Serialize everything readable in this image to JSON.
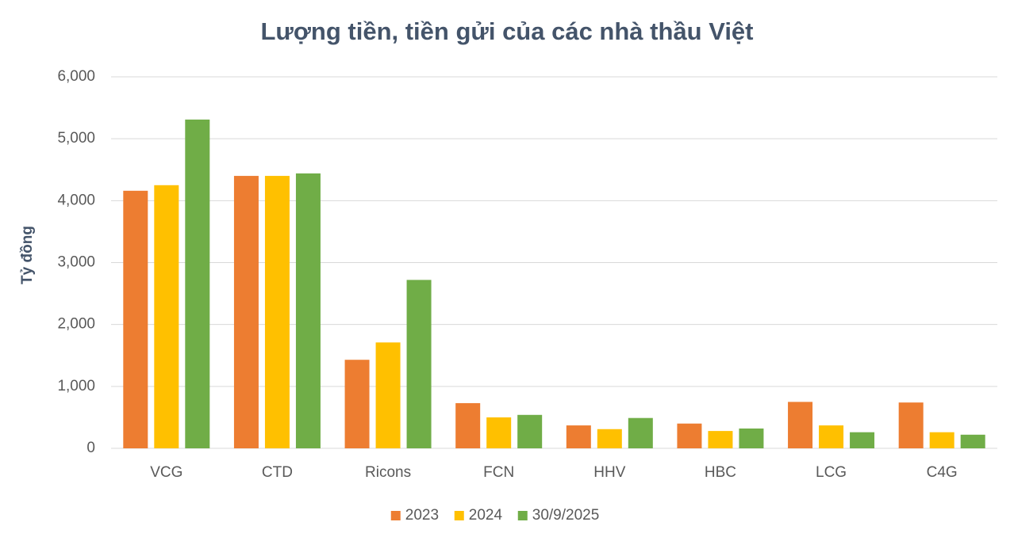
{
  "chart_data": {
    "type": "bar",
    "title": "Lượng tiền, tiền gửi của các nhà thầu Việt",
    "y_label": "Tỷ đồng",
    "categories": [
      "VCG",
      "CTD",
      "Ricons",
      "FCN",
      "HHV",
      "HBC",
      "LCG",
      "C4G"
    ],
    "series": [
      {
        "name": "2023",
        "color": "#ed7d31",
        "values": [
          4160,
          4400,
          1430,
          730,
          370,
          400,
          750,
          740
        ]
      },
      {
        "name": "2024",
        "color": "#ffc000",
        "values": [
          4250,
          4400,
          1710,
          500,
          310,
          280,
          370,
          260
        ]
      },
      {
        "name": "30/9/2025",
        "color": "#70ad47",
        "values": [
          5310,
          4440,
          2720,
          540,
          490,
          320,
          260,
          220
        ]
      }
    ],
    "ylim": [
      0,
      6000
    ],
    "yticks": [
      0,
      {
        "value": 1000,
        "label": "1,000"
      },
      {
        "value": 2000,
        "label": "2,000"
      },
      {
        "value": 3000,
        "label": "3,000"
      },
      {
        "value": 4000,
        "label": "4,000"
      },
      {
        "value": 5000,
        "label": "5,000"
      },
      {
        "value": 6000,
        "label": "6,000"
      }
    ],
    "grid": true,
    "legend": "bottom"
  }
}
